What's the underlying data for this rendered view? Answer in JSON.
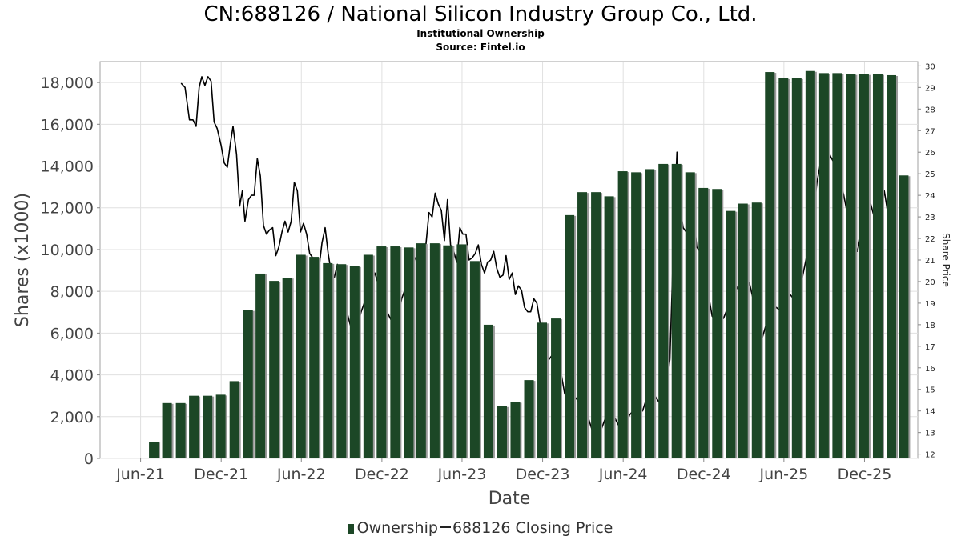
{
  "header": {
    "title": "CN:688126 / National Silicon Industry Group Co., Ltd.",
    "subtitle_1": "Institutional Ownership",
    "subtitle_2": "Source: Fintel.io"
  },
  "legend": {
    "ownership_label": "Ownership",
    "price_label": "688126 Closing Price"
  },
  "colors": {
    "bar": "#1c4726",
    "bar_shadow": "#9a9a9a",
    "line": "#000000",
    "grid": "#e0e0e0"
  },
  "chart_data": {
    "type": "bar",
    "title": "CN:688126 / National Silicon Industry Group Co., Ltd.",
    "xlabel": "Date",
    "ylabel": "Shares (x1000)",
    "y2label": "Share Price",
    "ylim": [
      0,
      19000
    ],
    "y2lim": [
      11.8,
      30.2
    ],
    "yticks": [
      0,
      2000,
      4000,
      6000,
      8000,
      10000,
      12000,
      14000,
      16000,
      18000
    ],
    "y2ticks": [
      12,
      13,
      14,
      15,
      16,
      17,
      18,
      19,
      20,
      21,
      22,
      23,
      24,
      25,
      26,
      27,
      28,
      29,
      30
    ],
    "xticks": [
      "Jun-21",
      "Dec-21",
      "Jun-22",
      "Dec-22",
      "Jun-23",
      "Dec-23",
      "Jun-24",
      "Dec-24",
      "Jun-25",
      "Dec-25"
    ],
    "xrange": [
      "2021-03-01",
      "2026-04-01"
    ],
    "grid": true,
    "legend_position": "bottom",
    "series": [
      {
        "name": "Ownership",
        "kind": "bar",
        "points": [
          [
            "2021-07-01",
            800
          ],
          [
            "2021-07-31",
            2650
          ],
          [
            "2021-08-31",
            2650
          ],
          [
            "2021-09-30",
            3000
          ],
          [
            "2021-10-31",
            3000
          ],
          [
            "2021-11-30",
            3050
          ],
          [
            "2021-12-31",
            3700
          ],
          [
            "2022-01-31",
            7100
          ],
          [
            "2022-02-28",
            8850
          ],
          [
            "2022-03-31",
            8500
          ],
          [
            "2022-04-30",
            8650
          ],
          [
            "2022-05-31",
            9750
          ],
          [
            "2022-06-30",
            9650
          ],
          [
            "2022-07-31",
            9350
          ],
          [
            "2022-08-31",
            9300
          ],
          [
            "2022-09-30",
            9200
          ],
          [
            "2022-10-31",
            9750
          ],
          [
            "2022-11-30",
            10150
          ],
          [
            "2022-12-31",
            10150
          ],
          [
            "2023-01-31",
            10100
          ],
          [
            "2023-02-28",
            10300
          ],
          [
            "2023-03-31",
            10300
          ],
          [
            "2023-04-30",
            10200
          ],
          [
            "2023-05-31",
            10250
          ],
          [
            "2023-06-30",
            9450
          ],
          [
            "2023-07-31",
            6400
          ],
          [
            "2023-08-31",
            2500
          ],
          [
            "2023-09-30",
            2700
          ],
          [
            "2023-10-31",
            3750
          ],
          [
            "2023-11-30",
            6500
          ],
          [
            "2023-12-31",
            6700
          ],
          [
            "2024-01-31",
            11650
          ],
          [
            "2024-02-29",
            12750
          ],
          [
            "2024-03-31",
            12750
          ],
          [
            "2024-04-30",
            12550
          ],
          [
            "2024-05-31",
            13750
          ],
          [
            "2024-06-30",
            13700
          ],
          [
            "2024-07-31",
            13850
          ],
          [
            "2024-08-31",
            14100
          ],
          [
            "2024-09-30",
            14100
          ],
          [
            "2024-10-31",
            13700
          ],
          [
            "2024-11-30",
            12950
          ],
          [
            "2024-12-31",
            12900
          ],
          [
            "2025-01-31",
            11850
          ],
          [
            "2025-02-28",
            12200
          ],
          [
            "2025-03-31",
            12250
          ],
          [
            "2025-04-30",
            18500
          ],
          [
            "2025-05-31",
            18200
          ],
          [
            "2025-06-30",
            18200
          ],
          [
            "2025-07-31",
            18550
          ],
          [
            "2025-08-31",
            18450
          ],
          [
            "2025-09-30",
            18450
          ],
          [
            "2025-10-31",
            18400
          ],
          [
            "2025-11-30",
            18400
          ],
          [
            "2025-12-31",
            18400
          ],
          [
            "2026-01-31",
            18350
          ],
          [
            "2026-02-28",
            13550
          ]
        ]
      },
      {
        "name": "688126 Closing Price",
        "kind": "line",
        "points": [
          [
            "2021-09-01",
            29.2
          ],
          [
            "2021-09-10",
            29.0
          ],
          [
            "2021-09-20",
            27.5
          ],
          [
            "2021-09-28",
            27.5
          ],
          [
            "2021-10-05",
            27.2
          ],
          [
            "2021-10-12",
            29.0
          ],
          [
            "2021-10-18",
            29.5
          ],
          [
            "2021-10-25",
            29.1
          ],
          [
            "2021-11-01",
            29.5
          ],
          [
            "2021-11-08",
            29.3
          ],
          [
            "2021-11-15",
            27.4
          ],
          [
            "2021-11-22",
            27.1
          ],
          [
            "2021-12-01",
            26.3
          ],
          [
            "2021-12-08",
            25.5
          ],
          [
            "2021-12-15",
            25.3
          ],
          [
            "2021-12-22",
            26.4
          ],
          [
            "2021-12-28",
            27.2
          ],
          [
            "2022-01-05",
            25.9
          ],
          [
            "2022-01-12",
            23.5
          ],
          [
            "2022-01-18",
            24.2
          ],
          [
            "2022-01-24",
            22.8
          ],
          [
            "2022-02-01",
            23.8
          ],
          [
            "2022-02-08",
            24.0
          ],
          [
            "2022-02-14",
            24.0
          ],
          [
            "2022-02-21",
            25.7
          ],
          [
            "2022-02-28",
            24.9
          ],
          [
            "2022-03-07",
            22.6
          ],
          [
            "2022-03-14",
            22.2
          ],
          [
            "2022-03-21",
            22.4
          ],
          [
            "2022-03-28",
            22.5
          ],
          [
            "2022-04-04",
            21.2
          ],
          [
            "2022-04-11",
            21.6
          ],
          [
            "2022-04-18",
            22.3
          ],
          [
            "2022-04-25",
            22.8
          ],
          [
            "2022-05-02",
            22.3
          ],
          [
            "2022-05-09",
            22.8
          ],
          [
            "2022-05-16",
            24.6
          ],
          [
            "2022-05-23",
            24.2
          ],
          [
            "2022-05-30",
            22.3
          ],
          [
            "2022-06-06",
            22.7
          ],
          [
            "2022-06-13",
            22.2
          ],
          [
            "2022-06-20",
            21.3
          ],
          [
            "2022-06-27",
            21.1
          ],
          [
            "2022-07-04",
            20.8
          ],
          [
            "2022-07-11",
            20.6
          ],
          [
            "2022-07-18",
            21.8
          ],
          [
            "2022-07-25",
            22.5
          ],
          [
            "2022-08-01",
            21.3
          ],
          [
            "2022-08-08",
            20.4
          ],
          [
            "2022-08-15",
            20.2
          ],
          [
            "2022-08-22",
            20.8
          ],
          [
            "2022-09-01",
            19.7
          ],
          [
            "2022-09-10",
            18.8
          ],
          [
            "2022-09-20",
            18.0
          ],
          [
            "2022-10-01",
            17.5
          ],
          [
            "2022-10-15",
            18.6
          ],
          [
            "2022-11-01",
            19.6
          ],
          [
            "2022-11-15",
            20.4
          ],
          [
            "2022-12-01",
            19.3
          ],
          [
            "2022-12-15",
            18.5
          ],
          [
            "2023-01-01",
            17.8
          ],
          [
            "2023-01-15",
            19.2
          ],
          [
            "2023-02-01",
            20.2
          ],
          [
            "2023-02-15",
            21.1
          ],
          [
            "2023-03-01",
            20.7
          ],
          [
            "2023-03-10",
            21.5
          ],
          [
            "2023-03-18",
            23.2
          ],
          [
            "2023-03-25",
            23.0
          ],
          [
            "2023-04-01",
            24.1
          ],
          [
            "2023-04-08",
            23.6
          ],
          [
            "2023-04-15",
            23.3
          ],
          [
            "2023-04-22",
            21.9
          ],
          [
            "2023-04-29",
            23.8
          ],
          [
            "2023-05-06",
            21.7
          ],
          [
            "2023-05-13",
            21.4
          ],
          [
            "2023-05-20",
            20.9
          ],
          [
            "2023-05-27",
            22.5
          ],
          [
            "2023-06-03",
            22.2
          ],
          [
            "2023-06-10",
            22.2
          ],
          [
            "2023-06-17",
            21.0
          ],
          [
            "2023-06-24",
            21.1
          ],
          [
            "2023-07-01",
            21.3
          ],
          [
            "2023-07-08",
            21.7
          ],
          [
            "2023-07-15",
            20.8
          ],
          [
            "2023-07-22",
            20.4
          ],
          [
            "2023-07-29",
            20.9
          ],
          [
            "2023-08-05",
            21.0
          ],
          [
            "2023-08-12",
            21.4
          ],
          [
            "2023-08-19",
            20.6
          ],
          [
            "2023-08-26",
            20.2
          ],
          [
            "2023-09-02",
            20.3
          ],
          [
            "2023-09-09",
            21.2
          ],
          [
            "2023-09-16",
            20.1
          ],
          [
            "2023-09-23",
            20.4
          ],
          [
            "2023-09-30",
            19.4
          ],
          [
            "2023-10-07",
            19.8
          ],
          [
            "2023-10-14",
            19.6
          ],
          [
            "2023-10-21",
            18.8
          ],
          [
            "2023-10-28",
            18.6
          ],
          [
            "2023-11-04",
            18.6
          ],
          [
            "2023-11-11",
            19.2
          ],
          [
            "2023-11-18",
            19.0
          ],
          [
            "2023-11-25",
            18.1
          ],
          [
            "2023-12-02",
            17.3
          ],
          [
            "2023-12-09",
            16.8
          ],
          [
            "2023-12-16",
            16.4
          ],
          [
            "2023-12-23",
            16.6
          ],
          [
            "2023-12-30",
            15.8
          ],
          [
            "2024-01-08",
            16.2
          ],
          [
            "2024-01-20",
            14.8
          ],
          [
            "2024-02-01",
            14.4
          ],
          [
            "2024-02-15",
            14.6
          ],
          [
            "2024-03-01",
            14.1
          ],
          [
            "2024-03-15",
            13.6
          ],
          [
            "2024-04-01",
            12.5
          ],
          [
            "2024-04-15",
            13.3
          ],
          [
            "2024-05-01",
            14.2
          ],
          [
            "2024-05-15",
            13.6
          ],
          [
            "2024-06-01",
            12.9
          ],
          [
            "2024-06-15",
            13.8
          ],
          [
            "2024-07-01",
            14.2
          ],
          [
            "2024-07-15",
            14.0
          ],
          [
            "2024-08-01",
            15.1
          ],
          [
            "2024-08-15",
            14.6
          ],
          [
            "2024-09-01",
            14.1
          ],
          [
            "2024-09-15",
            16.4
          ],
          [
            "2024-09-24",
            22.3
          ],
          [
            "2024-10-01",
            26.0
          ],
          [
            "2024-10-08",
            23.5
          ],
          [
            "2024-10-15",
            22.5
          ],
          [
            "2024-10-22",
            22.3
          ],
          [
            "2024-11-01",
            24.3
          ],
          [
            "2024-11-08",
            23.1
          ],
          [
            "2024-11-15",
            21.6
          ],
          [
            "2024-11-22",
            21.4
          ],
          [
            "2024-12-01",
            20.7
          ],
          [
            "2024-12-10",
            19.6
          ],
          [
            "2024-12-20",
            18.4
          ],
          [
            "2025-01-01",
            18.1
          ],
          [
            "2025-01-15",
            18.3
          ],
          [
            "2025-02-01",
            19.2
          ],
          [
            "2025-02-15",
            19.7
          ],
          [
            "2025-03-01",
            20.3
          ],
          [
            "2025-03-15",
            19.9
          ],
          [
            "2025-04-01",
            18.4
          ],
          [
            "2025-04-10",
            17.2
          ],
          [
            "2025-04-20",
            17.9
          ],
          [
            "2025-05-01",
            18.6
          ],
          [
            "2025-05-15",
            18.8
          ],
          [
            "2025-06-01",
            18.5
          ],
          [
            "2025-06-15",
            19.4
          ],
          [
            "2025-07-01",
            19.0
          ],
          [
            "2025-07-15",
            20.4
          ],
          [
            "2025-08-01",
            22.1
          ],
          [
            "2025-08-15",
            24.6
          ],
          [
            "2025-09-01",
            26.5
          ],
          [
            "2025-09-15",
            25.8
          ],
          [
            "2025-10-01",
            25.2
          ],
          [
            "2025-10-15",
            24.0
          ],
          [
            "2025-11-01",
            22.2
          ],
          [
            "2025-11-15",
            21.4
          ],
          [
            "2025-12-01",
            23.0
          ],
          [
            "2025-12-15",
            23.6
          ],
          [
            "2026-01-01",
            22.3
          ],
          [
            "2026-01-15",
            24.2
          ],
          [
            "2026-02-01",
            22.0
          ]
        ]
      }
    ]
  }
}
